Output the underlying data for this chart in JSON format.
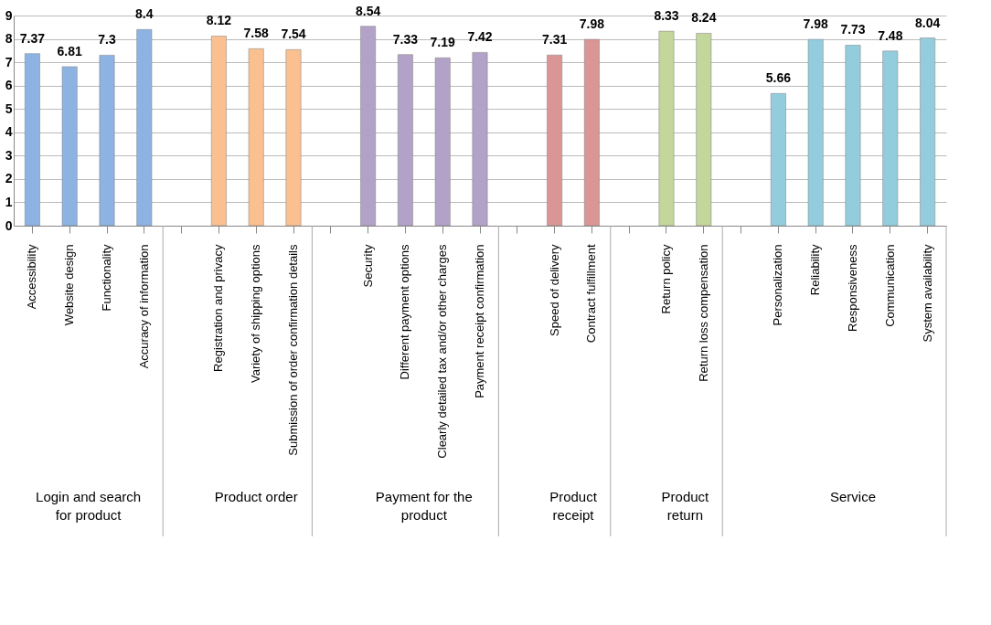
{
  "chart_data": {
    "type": "bar",
    "categories": [
      "Accessibility",
      "Website design",
      "Functionality",
      "Accuracy of information",
      null,
      "Registration and privacy",
      "Variety of shipping options",
      "Submission of order confirmation details",
      null,
      "Security",
      "Different payment options",
      "Clearly detailed tax and/or other charges",
      "Payment receipt confirmation",
      null,
      "Speed of delivery",
      "Contract fulfillment",
      null,
      "Return policy",
      "Return loss compensation",
      null,
      "Personalization",
      "Reliability",
      "Responsiveness",
      "Communication",
      "System availability"
    ],
    "values": [
      7.37,
      6.81,
      7.3,
      8.4,
      null,
      8.12,
      7.58,
      7.54,
      null,
      8.54,
      7.33,
      7.19,
      7.42,
      null,
      7.31,
      7.98,
      null,
      8.33,
      8.24,
      null,
      5.66,
      7.98,
      7.73,
      7.48,
      8.04
    ],
    "colors": [
      "#8db3e2",
      "#8db3e2",
      "#8db3e2",
      "#8db3e2",
      null,
      "#fac090",
      "#fac090",
      "#fac090",
      null,
      "#b3a2c7",
      "#b3a2c7",
      "#b3a2c7",
      "#b3a2c7",
      null,
      "#d99694",
      "#d99694",
      null,
      "#c3d69b",
      "#c3d69b",
      null,
      "#93cddd",
      "#93cddd",
      "#93cddd",
      "#93cddd",
      "#93cddd"
    ],
    "ylim": [
      0,
      9
    ],
    "yticks": [
      0,
      1,
      2,
      3,
      4,
      5,
      6,
      7,
      8,
      9
    ],
    "grid": "y",
    "data_labels": true,
    "annotations": [
      "Login and search for product",
      "Product order",
      "Payment for the product",
      "Product receipt",
      "Product return",
      "Service"
    ]
  }
}
